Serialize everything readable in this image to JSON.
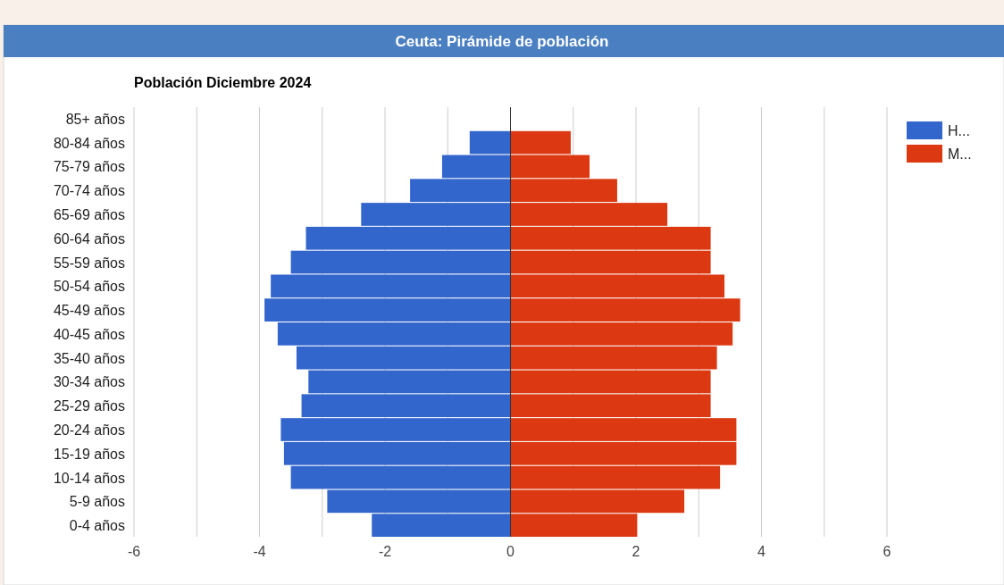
{
  "chart_data": {
    "type": "bar",
    "orientation": "horizontal",
    "title": "Ceuta: Pirámide de población",
    "subtitle": "Población Diciembre 2024",
    "categories": [
      "85+ años",
      "80-84 años",
      "75-79 años",
      "70-74 años",
      "65-69 años",
      "60-64 años",
      "55-59 años",
      "50-54 años",
      "45-49 años",
      "40-45 años",
      "35-40 años",
      "30-34 años",
      "25-29 años",
      "20-24 años",
      "15-19 años",
      "10-14 años",
      "5-9 años",
      "0-4 años"
    ],
    "series": [
      {
        "name": "H...",
        "color": "#3366cc",
        "values": [
          0,
          -0.65,
          -1.09,
          -1.6,
          -2.38,
          -3.26,
          -3.5,
          -3.82,
          -3.92,
          -3.71,
          -3.41,
          -3.22,
          -3.33,
          -3.66,
          -3.61,
          -3.5,
          -2.92,
          -2.21
        ]
      },
      {
        "name": "M...",
        "color": "#dc3912",
        "values": [
          0,
          0.96,
          1.26,
          1.7,
          2.5,
          3.19,
          3.19,
          3.41,
          3.66,
          3.54,
          3.29,
          3.19,
          3.19,
          3.6,
          3.6,
          3.34,
          2.77,
          2.02
        ]
      }
    ],
    "xlim": [
      -6,
      6
    ],
    "xticks": [
      -6,
      {
        "value": -5,
        "label": null
      },
      -4,
      {
        "value": -3,
        "label": null
      },
      -2,
      {
        "value": -1,
        "label": null
      },
      0,
      {
        "value": 1,
        "label": null
      },
      2,
      {
        "value": 3,
        "label": null
      },
      4,
      {
        "value": 5,
        "label": null
      },
      6
    ],
    "stacked": true,
    "grid": "x",
    "legend": "top right"
  }
}
